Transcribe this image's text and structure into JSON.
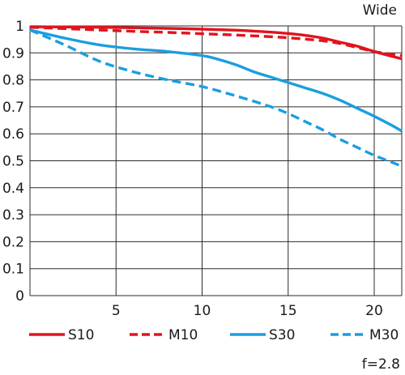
{
  "chart_data": {
    "type": "line",
    "subtitle": "Wide",
    "footnote": "f=2.8",
    "xlim": [
      0,
      21.6
    ],
    "ylim": [
      0,
      1
    ],
    "x_ticks": [
      5,
      10,
      15,
      20
    ],
    "y_ticks": [
      0,
      0.1,
      0.2,
      0.3,
      0.4,
      0.5,
      0.6,
      0.7,
      0.8,
      0.9,
      1
    ],
    "y_tick_labels": [
      "0",
      "0.1",
      "0.2",
      "0.3",
      "0.4",
      "0.5",
      "0.6",
      "0.7",
      "0.8",
      "0.9",
      "1"
    ],
    "x_tick_labels": [
      "5",
      "10",
      "15",
      "20"
    ],
    "grid": true,
    "legend_position": "bottom",
    "series": [
      {
        "name": "S10",
        "color": "#e0141e",
        "dash": "solid",
        "x": [
          0,
          2,
          4,
          6,
          8,
          10,
          12,
          14,
          15,
          16,
          17,
          18,
          19,
          20,
          21,
          21.6
        ],
        "y": [
          0.997,
          0.996,
          0.995,
          0.993,
          0.991,
          0.988,
          0.984,
          0.977,
          0.972,
          0.965,
          0.955,
          0.94,
          0.925,
          0.905,
          0.888,
          0.878
        ]
      },
      {
        "name": "M10",
        "color": "#e0141e",
        "dash": "dashed",
        "x": [
          0,
          2,
          4,
          6,
          8,
          10,
          12,
          14,
          15,
          16,
          17,
          18,
          19,
          20,
          21,
          21.6
        ],
        "y": [
          0.995,
          0.99,
          0.985,
          0.98,
          0.976,
          0.971,
          0.966,
          0.96,
          0.956,
          0.951,
          0.945,
          0.935,
          0.92,
          0.905,
          0.895,
          0.89
        ]
      },
      {
        "name": "S30",
        "color": "#1a9ee0",
        "dash": "solid",
        "x": [
          0,
          2,
          4,
          6,
          8,
          10,
          11,
          12,
          13,
          14,
          15,
          16,
          17,
          18,
          19,
          20,
          21,
          21.6
        ],
        "y": [
          0.985,
          0.955,
          0.93,
          0.915,
          0.905,
          0.89,
          0.875,
          0.855,
          0.83,
          0.81,
          0.79,
          0.77,
          0.75,
          0.725,
          0.695,
          0.665,
          0.632,
          0.61
        ]
      },
      {
        "name": "M30",
        "color": "#1a9ee0",
        "dash": "dashed",
        "x": [
          0,
          2,
          4,
          6,
          8,
          10,
          12,
          14,
          15,
          16,
          17,
          18,
          19,
          20,
          21,
          21.6
        ],
        "y": [
          0.985,
          0.93,
          0.87,
          0.83,
          0.8,
          0.775,
          0.74,
          0.7,
          0.675,
          0.645,
          0.615,
          0.58,
          0.55,
          0.52,
          0.495,
          0.48
        ]
      }
    ]
  }
}
